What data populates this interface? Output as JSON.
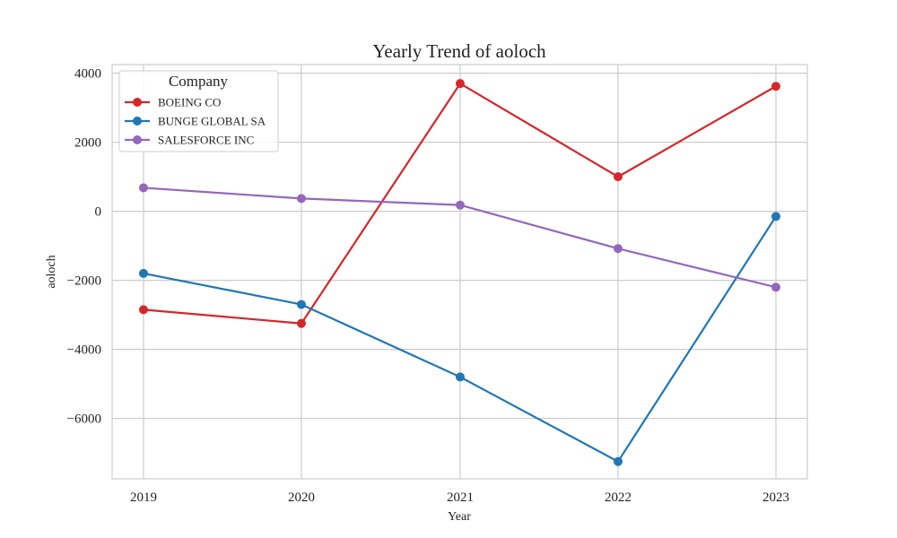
{
  "chart_data": {
    "type": "line",
    "title": "Yearly Trend of aoloch",
    "xlabel": "Year",
    "ylabel": "aoloch",
    "x": [
      "2019",
      "2020",
      "2021",
      "2022",
      "2023"
    ],
    "yticks": [
      4000,
      2000,
      0,
      -2000,
      -4000,
      -6000
    ],
    "ytick_labels": [
      "4000",
      "2000",
      "0",
      "−2000",
      "−4000",
      "−6000"
    ],
    "ylim": [
      -7750,
      4250
    ],
    "grid": true,
    "legend": {
      "title": "Company",
      "placement": "top-left"
    },
    "series": [
      {
        "name": "BOEING CO",
        "color": "#d62728",
        "values": [
          -2850,
          -3250,
          3700,
          1000,
          3620
        ]
      },
      {
        "name": "BUNGE GLOBAL SA",
        "color": "#1f77b4",
        "values": [
          -1800,
          -2700,
          -4800,
          -7250,
          -150
        ]
      },
      {
        "name": "SALESFORCE INC",
        "color": "#9467bd",
        "values": [
          680,
          370,
          180,
          -1080,
          -2200
        ]
      }
    ]
  }
}
